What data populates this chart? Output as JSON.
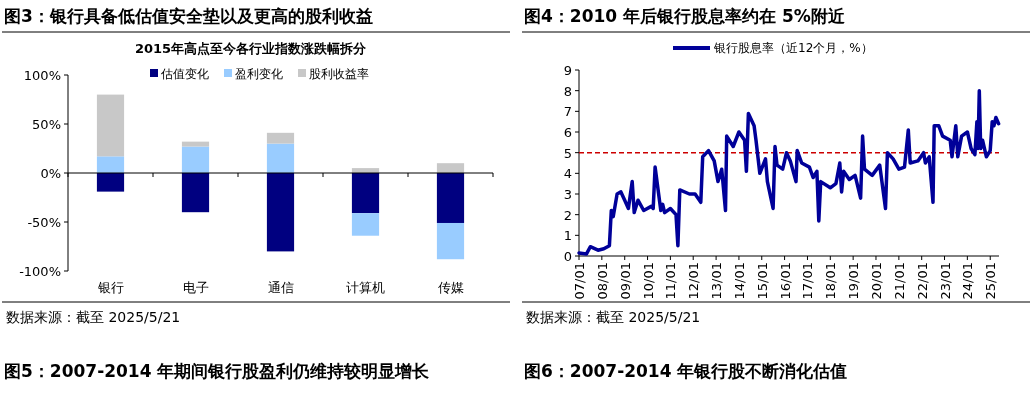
{
  "chart_data": [
    {
      "type": "bar",
      "title": "图3：银行具备低估值安全垫以及更高的股利收益",
      "subtitle": "2015年高点至今各行业指数涨跌幅拆分",
      "categories": [
        "银行",
        "电子",
        "通信",
        "计算机",
        "传媒"
      ],
      "series": [
        {
          "name": "估值变化",
          "color": "#000080",
          "values": [
            -19,
            -40,
            -80,
            -41,
            -51
          ]
        },
        {
          "name": "盈利变化",
          "color": "#99ccff",
          "values": [
            17,
            27,
            30,
            -23,
            -37
          ]
        },
        {
          "name": "股利收益率",
          "color": "#c8c8c8",
          "values": [
            63,
            5,
            11,
            5,
            10
          ]
        }
      ],
      "stacked": true,
      "ylim": [
        -100,
        100
      ],
      "yticks": [
        {
          "value": 100,
          "label": "100%"
        },
        {
          "value": 50,
          "label": "50%"
        },
        {
          "value": 0,
          "label": "0%"
        },
        {
          "value": -50,
          "label": "-50%"
        },
        {
          "value": -100,
          "label": "-100%"
        }
      ],
      "legend": "top",
      "annotations": [
        "数据来源：截至 2025/5/21",
        "图5：2007-2014 年期间银行股盈利仍维持较明显增长"
      ]
    },
    {
      "type": "line",
      "title": "图4：2010 年后银行股息率约在 5%附近",
      "x": [
        "2007-01-01",
        "2007-05-01",
        "2007-07-01",
        "2007-11-01",
        "2008-02-01",
        "2008-05-01",
        "2008-06-01",
        "2008-07-01",
        "2008-09-01",
        "2008-11-01",
        "2009-01-01",
        "2009-03-01",
        "2009-05-01",
        "2009-06-01",
        "2009-08-01",
        "2009-11-01",
        "2010-03-01",
        "2010-04-01",
        "2010-05-01",
        "2010-07-01",
        "2010-08-01",
        "2010-09-01",
        "2010-10-01",
        "2011-01-01",
        "2011-04-01",
        "2011-05-01",
        "2011-06-01",
        "2011-11-01",
        "2012-02-01",
        "2012-05-01",
        "2012-06-01",
        "2012-09-01",
        "2012-12-01",
        "2013-02-01",
        "2013-04-01",
        "2013-06-01",
        "2013-06-20",
        "2013-10-01",
        "2014-01-01",
        "2014-04-01",
        "2014-05-01",
        "2014-06-01",
        "2014-09-01",
        "2014-10-01",
        "2014-12-01",
        "2015-03-01",
        "2015-04-01",
        "2015-07-01",
        "2015-08-01",
        "2015-09-01",
        "2015-12-01",
        "2016-02-01",
        "2016-04-01",
        "2016-07-01",
        "2016-07-20",
        "2016-10-01",
        "2017-02-01",
        "2017-04-01",
        "2017-06-01",
        "2017-07-01",
        "2017-08-01",
        "2018-01-01",
        "2018-04-01",
        "2018-06-01",
        "2018-07-01",
        "2018-08-01",
        "2018-11-01",
        "2019-02-01",
        "2019-05-01",
        "2019-06-01",
        "2019-07-01",
        "2019-11-01",
        "2020-03-01",
        "2020-06-01",
        "2020-07-01",
        "2020-10-01",
        "2021-01-01",
        "2021-04-01",
        "2021-06-01",
        "2021-07-01",
        "2021-11-01",
        "2022-02-01",
        "2022-03-01",
        "2022-05-01",
        "2022-07-01",
        "2022-07-20",
        "2022-10-01",
        "2022-12-01",
        "2023-04-01",
        "2023-05-01",
        "2023-07-01",
        "2023-08-01",
        "2023-10-01",
        "2024-01-01",
        "2024-03-01",
        "2024-05-01",
        "2024-06-01",
        "2024-06-20",
        "2024-07-10",
        "2024-08-01",
        "2024-09-01",
        "2024-11-01",
        "2025-01-01",
        "2025-02-01",
        "2025-03-01",
        "2025-04-01",
        "2025-05-15"
      ],
      "series": [
        {
          "name": "银行股息率（近12个月，%）",
          "color": "#000099",
          "values": [
            0.15,
            0.1,
            0.45,
            0.28,
            0.35,
            0.5,
            2.2,
            1.9,
            3.0,
            3.1,
            2.7,
            2.3,
            3.6,
            2.1,
            2.7,
            2.2,
            2.4,
            2.3,
            4.3,
            2.9,
            2.2,
            2.5,
            2.1,
            2.3,
            2.0,
            0.5,
            3.2,
            3.0,
            3.0,
            2.6,
            4.8,
            5.1,
            4.6,
            3.6,
            4.2,
            2.2,
            5.8,
            5.3,
            6.0,
            5.6,
            4.1,
            6.9,
            6.3,
            5.6,
            4.0,
            4.7,
            3.6,
            2.3,
            5.3,
            4.4,
            4.2,
            5.0,
            4.6,
            3.6,
            5.1,
            4.5,
            4.3,
            3.8,
            4.1,
            1.7,
            3.6,
            3.3,
            3.5,
            4.5,
            3.1,
            4.1,
            3.7,
            3.9,
            2.8,
            5.8,
            4.2,
            3.9,
            4.4,
            2.3,
            5.0,
            4.7,
            4.2,
            4.3,
            6.1,
            4.5,
            4.6,
            5.0,
            4.5,
            4.8,
            2.6,
            6.3,
            6.3,
            5.8,
            5.6,
            4.8,
            6.3,
            4.8,
            5.8,
            6.0,
            5.2,
            4.9,
            6.5,
            5.2,
            8.0,
            5.2,
            5.6,
            4.8,
            5.1,
            6.5,
            6.3,
            6.7,
            6.4
          ]
        }
      ],
      "xlim": [
        "2007-01-01",
        "2025-05-21"
      ],
      "xticks": [
        {
          "value": "2007-01",
          "label": "07/01"
        },
        {
          "value": "2008-01",
          "label": "08/01"
        },
        {
          "value": "2009-01",
          "label": "09/01"
        },
        {
          "value": "2010-01",
          "label": "10/01"
        },
        {
          "value": "2011-01",
          "label": "11/01"
        },
        {
          "value": "2012-01",
          "label": "12/01"
        },
        {
          "value": "2013-01",
          "label": "13/01"
        },
        {
          "value": "2014-01",
          "label": "14/01"
        },
        {
          "value": "2015-01",
          "label": "15/01"
        },
        {
          "value": "2016-01",
          "label": "16/01"
        },
        {
          "value": "2017-01",
          "label": "17/01"
        },
        {
          "value": "2018-01",
          "label": "18/01"
        },
        {
          "value": "2019-01",
          "label": "19/01"
        },
        {
          "value": "2020-01",
          "label": "20/01"
        },
        {
          "value": "2021-01",
          "label": "21/01"
        },
        {
          "value": "2022-01",
          "label": "22/01"
        },
        {
          "value": "2023-01",
          "label": "23/01"
        },
        {
          "value": "2024-01",
          "label": "24/01"
        },
        {
          "value": "2025-01",
          "label": "25/01"
        }
      ],
      "ylim": [
        0,
        9
      ],
      "yticks": [
        0,
        1,
        2,
        3,
        4,
        5,
        6,
        7,
        8,
        9
      ],
      "ref_lines": [
        {
          "axis": "y",
          "value": 5,
          "color": "#cc0000",
          "line_style": "dashed"
        }
      ],
      "legend": "top",
      "annotations": [
        "数据来源：截至 2025/5/21",
        "图6：2007-2014 年银行股不断消化估值"
      ]
    }
  ]
}
